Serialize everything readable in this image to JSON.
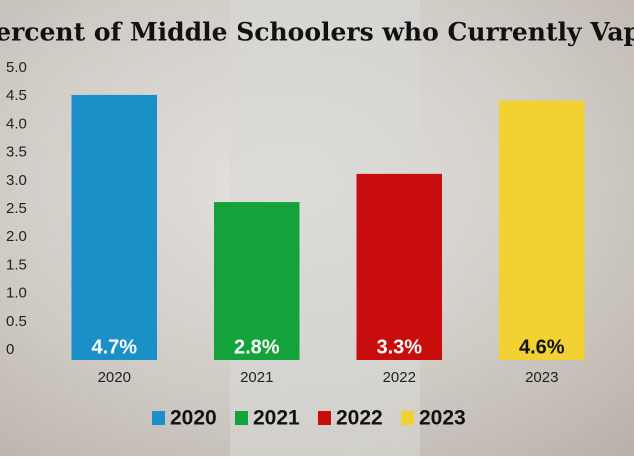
{
  "chart_data": {
    "type": "bar",
    "title": "Percent of Middle Schoolers who Currently Vape",
    "categories": [
      "2020",
      "2021",
      "2022",
      "2023"
    ],
    "values": [
      4.7,
      2.8,
      3.3,
      4.6
    ],
    "value_labels": [
      "4.7%",
      "2.8%",
      "3.3%",
      "4.6%"
    ],
    "colors": [
      "#1a8fc8",
      "#13a33a",
      "#c90d0d",
      "#f2d132"
    ],
    "ylim": [
      0,
      5
    ],
    "yticks": [
      0,
      0.5,
      {
        "value": 1,
        "label": "1.0"
      },
      1.5,
      {
        "value": 2,
        "label": "2.0"
      },
      2.5,
      {
        "value": 3,
        "label": "3.0"
      },
      3.5,
      {
        "value": 4,
        "label": "4.0"
      },
      4.5,
      {
        "value": 5,
        "label": "5.0"
      }
    ],
    "grid": false,
    "legend": "bottom"
  }
}
